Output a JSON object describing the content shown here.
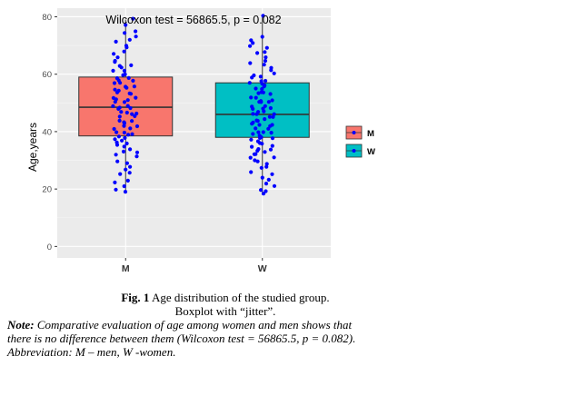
{
  "chart_data": {
    "type": "boxplot",
    "title": "Wilcoxon test = 56865.5, p = 0.082",
    "xlabel": "",
    "ylabel": "Age,years",
    "ylim": [
      -4,
      83
    ],
    "yticks": [
      0,
      20,
      40,
      60,
      80
    ],
    "categories": [
      "M",
      "W"
    ],
    "grid": true,
    "legend": {
      "position": "right",
      "entries": [
        "M",
        "W"
      ]
    },
    "colors": {
      "M": "#f8766d",
      "W": "#00bfc4",
      "points": "#0000ff",
      "panel": "#ebebeb"
    },
    "boxes": [
      {
        "name": "M",
        "min": 19,
        "q1": 38.5,
        "median": 48.5,
        "q3": 59,
        "max": 79
      },
      {
        "name": "W",
        "min": 18,
        "q1": 38,
        "median": 46,
        "q3": 57,
        "max": 80
      }
    ],
    "jitter_points": {
      "M": [
        19,
        20,
        21,
        22,
        23,
        25,
        26,
        27,
        28,
        29,
        30,
        31,
        32,
        33,
        33,
        34,
        35,
        35,
        36,
        36,
        37,
        37,
        38,
        38,
        39,
        39,
        40,
        40,
        41,
        41,
        42,
        42,
        43,
        43,
        44,
        44,
        45,
        45,
        46,
        46,
        47,
        47,
        48,
        48,
        48,
        49,
        49,
        50,
        50,
        51,
        51,
        52,
        52,
        53,
        53,
        54,
        54,
        55,
        55,
        56,
        56,
        57,
        57,
        58,
        58,
        59,
        59,
        60,
        60,
        61,
        61,
        62,
        63,
        63,
        64,
        65,
        66,
        67,
        68,
        69,
        70,
        71,
        72,
        73,
        74,
        75,
        77,
        79
      ],
      "W": [
        18,
        19,
        20,
        21,
        22,
        23,
        24,
        25,
        26,
        27,
        28,
        29,
        30,
        30,
        31,
        31,
        32,
        32,
        33,
        33,
        34,
        34,
        35,
        35,
        36,
        36,
        37,
        37,
        38,
        38,
        38,
        39,
        39,
        40,
        40,
        40,
        41,
        41,
        42,
        42,
        42,
        43,
        43,
        44,
        44,
        44,
        45,
        45,
        46,
        46,
        46,
        47,
        47,
        48,
        48,
        48,
        49,
        49,
        50,
        50,
        50,
        51,
        51,
        52,
        52,
        53,
        53,
        54,
        54,
        55,
        55,
        56,
        56,
        57,
        57,
        58,
        58,
        59,
        59,
        60,
        60,
        61,
        62,
        63,
        64,
        65,
        66,
        67,
        68,
        69,
        70,
        71,
        72,
        73,
        80
      ]
    }
  },
  "caption": {
    "fig_label": "Fig. 1",
    "fig_text": " Age distribution of the studied group.",
    "fig_text2": "Boxplot with “jitter”.",
    "note_label": "Note:",
    "note_text": " Comparative evaluation of age among women and men shows that",
    "note_line2": "there is no difference between them (Wilcoxon test = 56865.5, p = 0.082).",
    "note_line3": "Abbreviation: M – men, W -women."
  }
}
